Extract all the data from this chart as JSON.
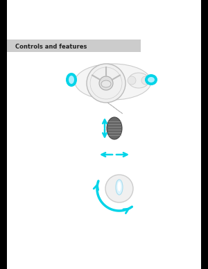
{
  "bg_color": "#000000",
  "header_bg": "#cccccc",
  "header_text": "Controls and features",
  "header_text_color": "#222222",
  "cyan_color": "#00d4e8",
  "white": "#ffffff",
  "page_bg": "#ffffff"
}
